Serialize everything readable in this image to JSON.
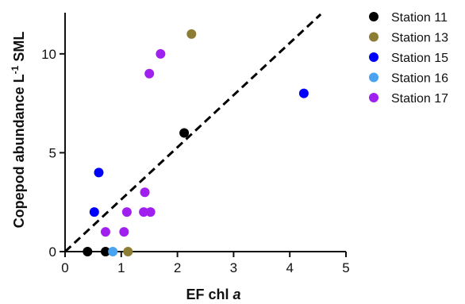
{
  "chart_data": {
    "type": "scatter",
    "xlabel": "EF chl",
    "xlabel_italic": "a",
    "ylabel": "Copepod abundance L",
    "ylabel_sup": "-1",
    "ylabel_suffix": " SML",
    "xlim": [
      0,
      5
    ],
    "ylim": [
      0,
      12
    ],
    "xticks": [
      0,
      1,
      2,
      3,
      4,
      5
    ],
    "yticks": [
      0,
      5,
      10
    ],
    "grid": false,
    "legend_position": "right",
    "reference_line": {
      "style": "dashed",
      "color": "#000000",
      "from": [
        0,
        0
      ],
      "to": [
        4.55,
        12
      ]
    },
    "series": [
      {
        "name": "Station 11",
        "color": "#000000",
        "points": [
          [
            0.4,
            0
          ],
          [
            0.72,
            0
          ],
          [
            2.12,
            6
          ]
        ]
      },
      {
        "name": "Station 13",
        "color": "#8c7d35",
        "points": [
          [
            1.12,
            0
          ],
          [
            2.25,
            11
          ]
        ]
      },
      {
        "name": "Station 15",
        "color": "#0000ff",
        "points": [
          [
            0.52,
            2
          ],
          [
            0.6,
            4
          ],
          [
            4.25,
            8
          ]
        ]
      },
      {
        "name": "Station 16",
        "color": "#4aa3f0",
        "points": [
          [
            0.85,
            0
          ]
        ]
      },
      {
        "name": "Station 17",
        "color": "#a020f0",
        "points": [
          [
            0.72,
            1
          ],
          [
            1.05,
            1
          ],
          [
            1.1,
            2
          ],
          [
            1.4,
            2
          ],
          [
            1.52,
            2
          ],
          [
            1.42,
            3
          ],
          [
            1.5,
            9
          ],
          [
            1.7,
            10
          ]
        ]
      }
    ]
  }
}
